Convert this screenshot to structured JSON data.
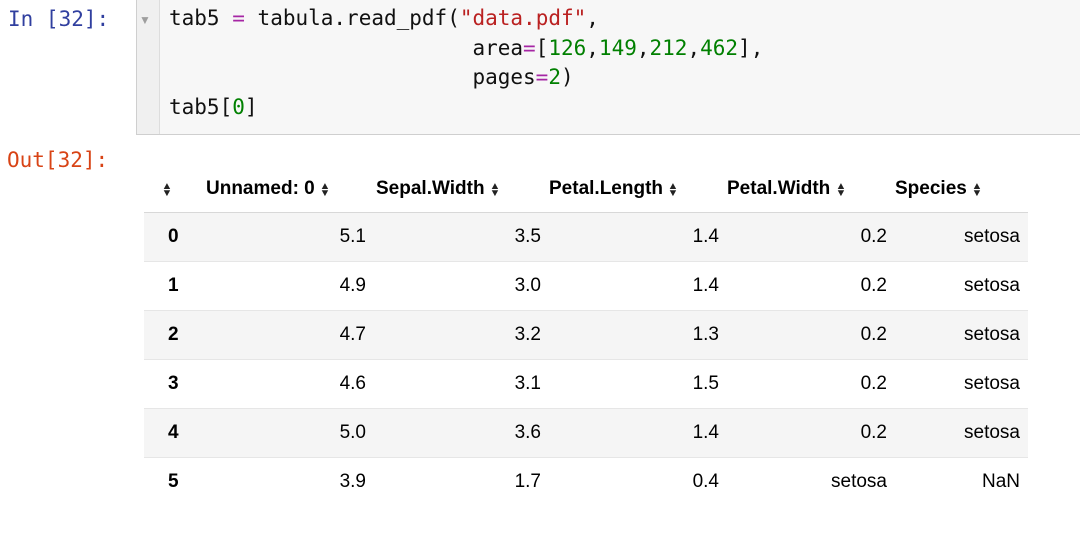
{
  "input_prompt": "In [32]:",
  "output_prompt": "Out[32]:",
  "code": {
    "line1": {
      "var": "tab5",
      "op": "=",
      "call": "tabula.read_pdf(",
      "str": "\"data.pdf\"",
      "comma": ","
    },
    "line2": {
      "kw": "area",
      "op": "=",
      "open": "[",
      "nums": [
        "126",
        "149",
        "212",
        "462"
      ],
      "close": "],"
    },
    "line3": {
      "kw": "pages",
      "op": "=",
      "num": "2",
      "close": ")"
    },
    "line4": {
      "var": "tab5",
      "open": "[",
      "num": "0",
      "close": "]"
    }
  },
  "table": {
    "columns": [
      "Unnamed: 0",
      "Sepal.Width",
      "Petal.Length",
      "Petal.Width",
      "Species"
    ],
    "rows": [
      {
        "index": "0",
        "cells": [
          "5.1",
          "3.5",
          "1.4",
          "0.2",
          "setosa"
        ]
      },
      {
        "index": "1",
        "cells": [
          "4.9",
          "3.0",
          "1.4",
          "0.2",
          "setosa"
        ]
      },
      {
        "index": "2",
        "cells": [
          "4.7",
          "3.2",
          "1.3",
          "0.2",
          "setosa"
        ]
      },
      {
        "index": "3",
        "cells": [
          "4.6",
          "3.1",
          "1.5",
          "0.2",
          "setosa"
        ]
      },
      {
        "index": "4",
        "cells": [
          "5.0",
          "3.6",
          "1.4",
          "0.2",
          "setosa"
        ]
      },
      {
        "index": "5",
        "cells": [
          "3.9",
          "1.7",
          "0.4",
          "setosa",
          "NaN"
        ]
      }
    ]
  },
  "icons": {
    "collapse": "triangle-down-icon",
    "sort": "sort-arrows-icon"
  },
  "colors": {
    "in_prompt": "#303f9f",
    "out_prompt": "#d84315",
    "keyword_op": "#a626a4",
    "string": "#ba2121",
    "number": "#008000"
  }
}
